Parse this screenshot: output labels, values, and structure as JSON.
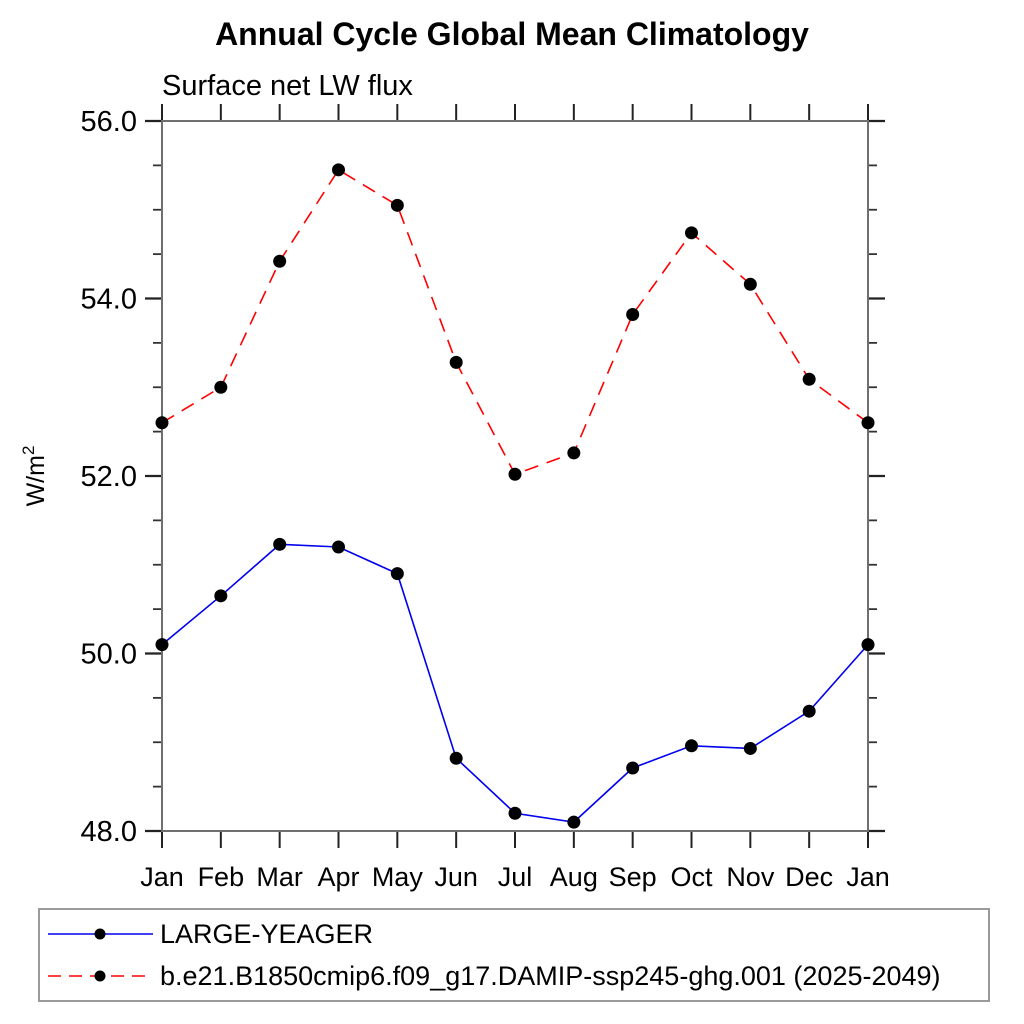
{
  "title": "Annual Cycle Global Mean Climatology",
  "subtitle": "Surface net LW flux",
  "chart_data": {
    "type": "line",
    "x_categories": [
      "Jan",
      "Feb",
      "Mar",
      "Apr",
      "May",
      "Jun",
      "Jul",
      "Aug",
      "Sep",
      "Oct",
      "Nov",
      "Dec",
      "Jan"
    ],
    "ylabel": "W/m²",
    "ylim": [
      48.0,
      56.0
    ],
    "ytick_values": [
      48,
      50,
      52,
      54,
      56
    ],
    "ytick_labels": [
      "48.0",
      "50.0",
      "52.0",
      "54.0",
      "56.0"
    ],
    "minor_tick_step": 0.5,
    "grid": false,
    "legend_position": "bottom",
    "series": [
      {
        "name": "LARGE-YEAGER",
        "color": "#0000ee",
        "line_style": "solid",
        "marker": "filled-circle",
        "marker_color": "#000000",
        "values": [
          50.1,
          50.65,
          51.23,
          51.2,
          50.9,
          48.82,
          48.2,
          48.1,
          48.71,
          48.96,
          48.93,
          49.35,
          50.1
        ]
      },
      {
        "name": "b.e21.B1850cmip6.f09_g17.DAMIP-ssp245-ghg.001 (2025-2049)",
        "color": "#ff0000",
        "line_style": "dashed",
        "marker": "filled-circle",
        "marker_color": "#000000",
        "values": [
          52.6,
          53.0,
          54.42,
          55.45,
          55.05,
          53.28,
          52.02,
          52.26,
          53.82,
          54.74,
          54.16,
          53.09,
          52.6
        ]
      }
    ]
  }
}
